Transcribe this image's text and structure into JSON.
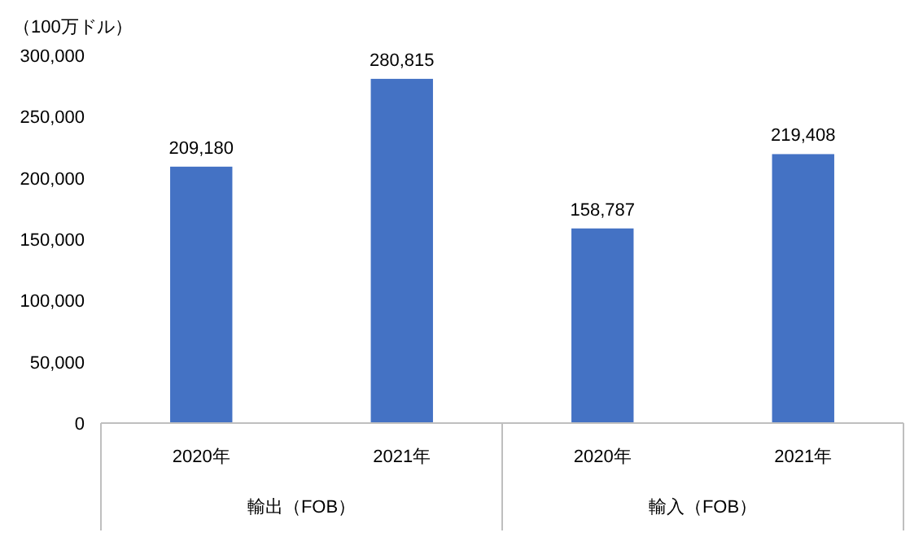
{
  "chart_data": {
    "type": "bar",
    "ylabel": "（100万ドル）",
    "categories": [
      "2020年",
      "2021年",
      "2020年",
      "2021年"
    ],
    "values": [
      209180,
      280815,
      158787,
      219408
    ],
    "color": "#4472c4",
    "ylim": [
      0,
      300000
    ],
    "yticks": [
      {
        "value": 0,
        "label": "0"
      },
      {
        "value": 50000,
        "label": "50,000"
      },
      {
        "value": 100000,
        "label": "100,000"
      },
      {
        "value": 150000,
        "label": "150,000"
      },
      {
        "value": 200000,
        "label": "200,000"
      },
      {
        "value": 250000,
        "label": "250,000"
      },
      {
        "value": 300000,
        "label": "300,000"
      }
    ],
    "grid": false,
    "value_labels": [
      "209,180",
      "280,815",
      "158,787",
      "219,408"
    ],
    "annotations": [
      "輸出（FOB）",
      "輸入（FOB）"
    ]
  }
}
